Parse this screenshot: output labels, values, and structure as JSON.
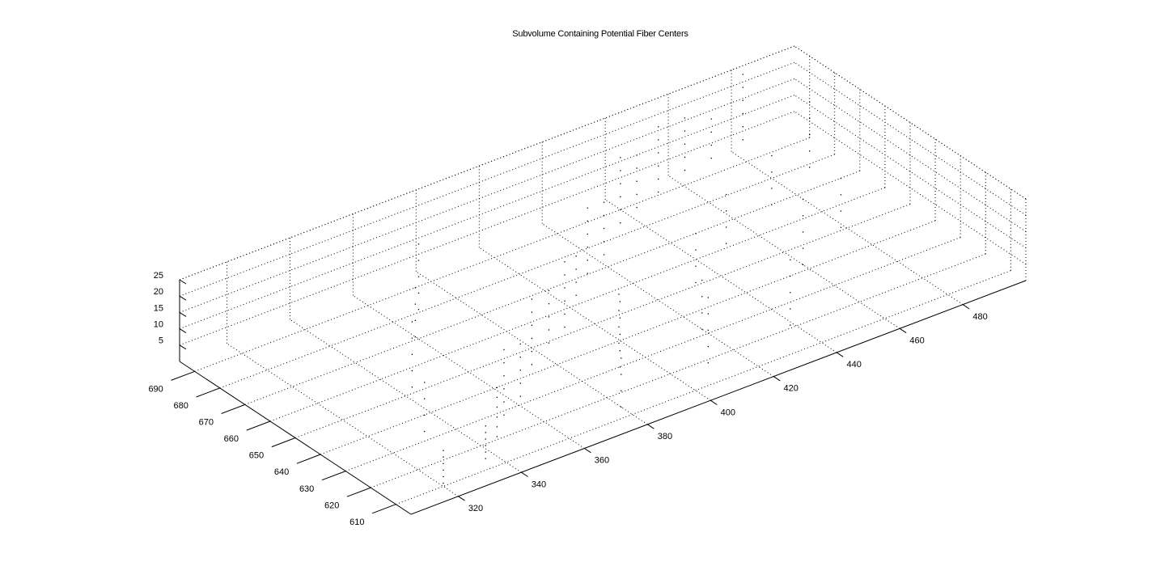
{
  "chart_data": {
    "type": "scatter3d",
    "title": "Subvolume Containing Potential Fiber Centers",
    "xlabel": "",
    "ylabel": "",
    "zlabel": "",
    "xlim": [
      305,
      500
    ],
    "ylim": [
      604,
      696
    ],
    "zlim": [
      0,
      25
    ],
    "xticks": [
      "320",
      "340",
      "360",
      "380",
      "400",
      "420",
      "440",
      "460",
      "480"
    ],
    "yticks": [
      "610",
      "620",
      "630",
      "640",
      "650",
      "660",
      "670",
      "680",
      "690"
    ],
    "zticks": [
      "5",
      "10",
      "15",
      "20",
      "25"
    ],
    "grid": true,
    "marker": "point",
    "color": "#000000",
    "series": [
      {
        "points": [
          [
            320,
            610,
            1
          ],
          [
            320,
            610,
            3
          ],
          [
            320,
            610,
            5
          ],
          [
            320,
            610,
            7
          ],
          [
            320,
            610,
            9
          ],
          [
            320,
            610,
            11
          ],
          [
            335,
            612,
            2
          ],
          [
            335,
            612,
            4
          ],
          [
            335,
            612,
            6
          ],
          [
            335,
            612,
            8
          ],
          [
            335,
            612,
            10
          ],
          [
            335,
            612,
            12
          ],
          [
            345,
            620,
            1
          ],
          [
            345,
            620,
            4
          ],
          [
            345,
            620,
            7
          ],
          [
            345,
            620,
            10
          ],
          [
            345,
            620,
            13
          ],
          [
            345,
            620,
            16
          ],
          [
            352,
            626,
            2
          ],
          [
            352,
            626,
            6
          ],
          [
            352,
            626,
            10
          ],
          [
            352,
            626,
            14
          ],
          [
            352,
            626,
            18
          ],
          [
            352,
            626,
            22
          ],
          [
            362,
            632,
            1
          ],
          [
            362,
            632,
            5
          ],
          [
            362,
            632,
            9
          ],
          [
            362,
            632,
            13
          ],
          [
            362,
            632,
            17
          ],
          [
            372,
            640,
            3
          ],
          [
            372,
            640,
            7
          ],
          [
            372,
            640,
            11
          ],
          [
            372,
            640,
            15
          ],
          [
            372,
            640,
            19
          ],
          [
            372,
            640,
            23
          ],
          [
            383,
            647,
            2
          ],
          [
            383,
            647,
            6
          ],
          [
            383,
            647,
            10
          ],
          [
            383,
            647,
            14
          ],
          [
            383,
            647,
            18
          ],
          [
            392,
            652,
            1
          ],
          [
            392,
            652,
            5
          ],
          [
            392,
            652,
            9
          ],
          [
            392,
            652,
            13
          ],
          [
            392,
            652,
            17
          ],
          [
            392,
            652,
            21
          ],
          [
            402,
            660,
            3
          ],
          [
            402,
            660,
            7
          ],
          [
            402,
            660,
            11
          ],
          [
            402,
            660,
            15
          ],
          [
            412,
            668,
            2
          ],
          [
            412,
            668,
            6
          ],
          [
            412,
            668,
            10
          ],
          [
            412,
            668,
            14
          ],
          [
            412,
            668,
            18
          ],
          [
            412,
            668,
            22
          ],
          [
            422,
            674,
            1
          ],
          [
            422,
            674,
            5
          ],
          [
            422,
            674,
            9
          ],
          [
            422,
            674,
            13
          ],
          [
            422,
            674,
            17
          ],
          [
            432,
            680,
            4
          ],
          [
            432,
            680,
            8
          ],
          [
            432,
            680,
            12
          ],
          [
            432,
            680,
            16
          ],
          [
            432,
            680,
            20
          ],
          [
            432,
            680,
            24
          ],
          [
            442,
            686,
            2
          ],
          [
            442,
            686,
            6
          ],
          [
            442,
            686,
            10
          ],
          [
            442,
            686,
            14
          ],
          [
            442,
            686,
            18
          ],
          [
            452,
            690,
            1
          ],
          [
            452,
            690,
            5
          ],
          [
            452,
            690,
            9
          ],
          [
            452,
            690,
            13
          ],
          [
            452,
            690,
            17
          ],
          [
            452,
            690,
            21
          ],
          [
            462,
            692,
            3
          ],
          [
            462,
            692,
            7
          ],
          [
            462,
            692,
            11
          ],
          [
            462,
            692,
            15
          ],
          [
            462,
            692,
            19
          ],
          [
            472,
            694,
            2
          ],
          [
            472,
            694,
            6
          ],
          [
            472,
            694,
            10
          ],
          [
            472,
            694,
            14
          ],
          [
            482,
            694,
            4
          ],
          [
            482,
            694,
            8
          ],
          [
            482,
            694,
            12
          ],
          [
            482,
            694,
            16
          ],
          [
            482,
            694,
            20
          ],
          [
            482,
            694,
            24
          ],
          [
            330,
            630,
            3
          ],
          [
            330,
            630,
            8
          ],
          [
            330,
            630,
            13
          ],
          [
            330,
            630,
            18
          ],
          [
            342,
            650,
            2
          ],
          [
            342,
            650,
            7
          ],
          [
            342,
            650,
            12
          ],
          [
            342,
            650,
            17
          ],
          [
            342,
            650,
            22
          ],
          [
            355,
            665,
            5
          ],
          [
            355,
            665,
            10
          ],
          [
            355,
            665,
            15
          ],
          [
            355,
            665,
            20
          ],
          [
            368,
            680,
            1
          ],
          [
            368,
            680,
            6
          ],
          [
            368,
            680,
            11
          ],
          [
            368,
            680,
            16
          ],
          [
            368,
            680,
            21
          ],
          [
            378,
            612,
            2
          ],
          [
            378,
            612,
            7
          ],
          [
            378,
            612,
            12
          ],
          [
            378,
            612,
            17
          ],
          [
            388,
            625,
            4
          ],
          [
            388,
            625,
            9
          ],
          [
            388,
            625,
            14
          ],
          [
            388,
            625,
            19
          ],
          [
            388,
            625,
            24
          ],
          [
            398,
            638,
            1
          ],
          [
            398,
            638,
            6
          ],
          [
            398,
            638,
            11
          ],
          [
            398,
            638,
            16
          ],
          [
            408,
            615,
            3
          ],
          [
            408,
            615,
            8
          ],
          [
            408,
            615,
            13
          ],
          [
            408,
            615,
            18
          ],
          [
            408,
            615,
            23
          ],
          [
            418,
            630,
            2
          ],
          [
            418,
            630,
            7
          ],
          [
            418,
            630,
            12
          ],
          [
            418,
            630,
            17
          ],
          [
            428,
            645,
            5
          ],
          [
            428,
            645,
            10
          ],
          [
            428,
            645,
            15
          ],
          [
            428,
            645,
            20
          ],
          [
            438,
            620,
            1
          ],
          [
            438,
            620,
            6
          ],
          [
            438,
            620,
            11
          ],
          [
            438,
            620,
            16
          ],
          [
            438,
            620,
            21
          ],
          [
            448,
            658,
            3
          ],
          [
            448,
            658,
            8
          ],
          [
            448,
            658,
            13
          ],
          [
            448,
            658,
            18
          ],
          [
            458,
            640,
            2
          ],
          [
            458,
            640,
            7
          ],
          [
            458,
            640,
            12
          ],
          [
            458,
            640,
            17
          ],
          [
            458,
            640,
            22
          ],
          [
            468,
            665,
            4
          ],
          [
            468,
            665,
            9
          ],
          [
            468,
            665,
            14
          ],
          [
            468,
            665,
            19
          ],
          [
            478,
            650,
            1
          ],
          [
            478,
            650,
            6
          ],
          [
            478,
            650,
            11
          ],
          [
            478,
            650,
            16
          ],
          [
            488,
            675,
            3
          ],
          [
            488,
            675,
            8
          ],
          [
            488,
            675,
            13
          ],
          [
            488,
            675,
            18
          ],
          [
            488,
            675,
            23
          ]
        ]
      }
    ]
  }
}
